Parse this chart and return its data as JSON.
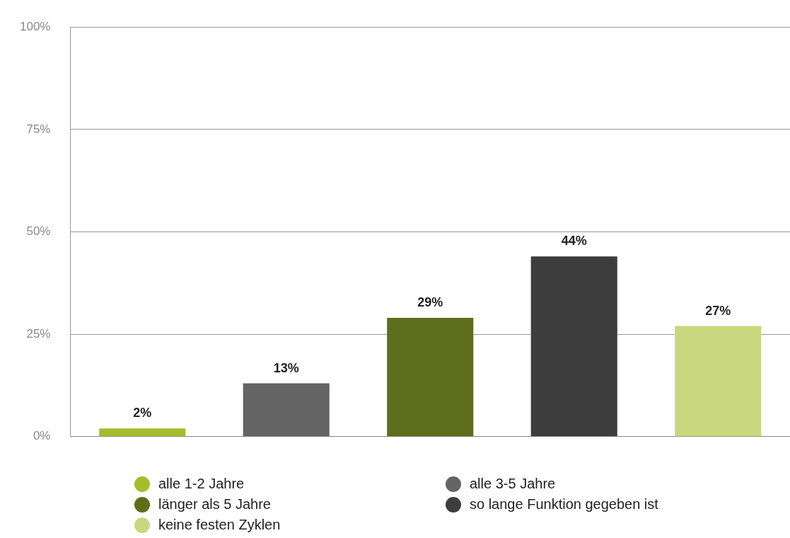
{
  "chart_data": {
    "type": "bar",
    "categories": [
      null,
      null,
      null,
      null,
      null
    ],
    "series": [
      {
        "name": "alle 1-2 Jahre",
        "color": "#a2be2f",
        "values": [
          2,
          null,
          null,
          null,
          null
        ],
        "value_labels": [
          "2%",
          null,
          null,
          null,
          null
        ]
      },
      {
        "name": "alle 3-5 Jahre",
        "color": "#656565",
        "values": [
          null,
          13,
          null,
          null,
          null
        ],
        "value_labels": [
          null,
          "13%",
          null,
          null,
          null
        ]
      },
      {
        "name": "länger als 5 Jahre",
        "color": "#5f6e1b",
        "values": [
          null,
          null,
          29,
          null,
          null
        ],
        "value_labels": [
          null,
          null,
          "29%",
          null,
          null
        ]
      },
      {
        "name": "so lange Funktion gegeben ist",
        "color": "#3d3d3d",
        "values": [
          null,
          null,
          null,
          44,
          null
        ],
        "value_labels": [
          null,
          null,
          null,
          "44%",
          null
        ]
      },
      {
        "name": "keine festen Zyklen",
        "color": "#c9d87e",
        "values": [
          null,
          null,
          null,
          null,
          27
        ],
        "value_labels": [
          null,
          null,
          null,
          null,
          "27%"
        ]
      }
    ],
    "ylim": [
      0,
      100
    ],
    "yticks": [
      {
        "value": 0,
        "label": "0%"
      },
      {
        "value": 25,
        "label": "25%"
      },
      {
        "value": 50,
        "label": "50%"
      },
      {
        "value": 75,
        "label": "75%"
      },
      {
        "value": 100,
        "label": "100%"
      }
    ],
    "grid": "y",
    "legend": "bottom"
  }
}
